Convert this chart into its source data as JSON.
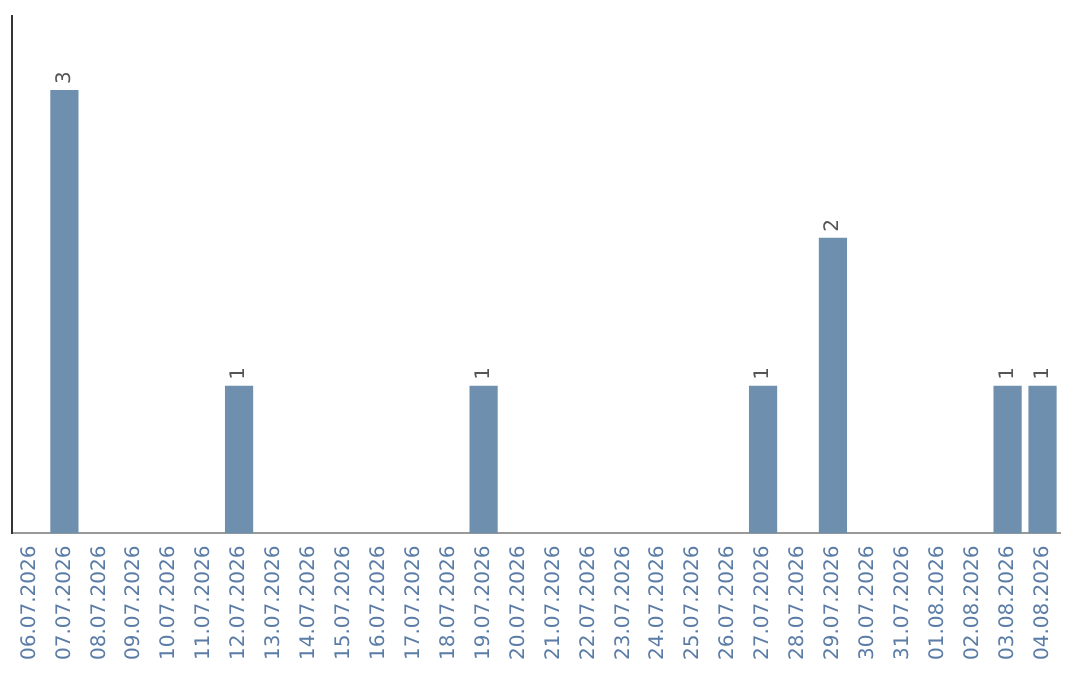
{
  "chart_data": {
    "type": "bar",
    "categories": [
      "06.07.2026",
      "07.07.2026",
      "08.07.2026",
      "09.07.2026",
      "10.07.2026",
      "11.07.2026",
      "12.07.2026",
      "13.07.2026",
      "14.07.2026",
      "15.07.2026",
      "16.07.2026",
      "17.07.2026",
      "18.07.2026",
      "19.07.2026",
      "20.07.2026",
      "21.07.2026",
      "22.07.2026",
      "23.07.2026",
      "24.07.2026",
      "25.07.2026",
      "26.07.2026",
      "27.07.2026",
      "28.07.2026",
      "29.07.2026",
      "30.07.2026",
      "31.07.2026",
      "01.08.2026",
      "02.08.2026",
      "03.08.2026",
      "04.08.2026"
    ],
    "values": [
      0,
      3,
      0,
      0,
      0,
      0,
      1,
      0,
      0,
      0,
      0,
      0,
      0,
      1,
      0,
      0,
      0,
      0,
      0,
      0,
      0,
      1,
      0,
      2,
      0,
      0,
      0,
      0,
      1,
      1
    ],
    "value_labels": [
      null,
      "3",
      null,
      null,
      null,
      null,
      "1",
      null,
      null,
      null,
      null,
      null,
      null,
      "1",
      null,
      null,
      null,
      null,
      null,
      null,
      null,
      "1",
      null,
      "2",
      null,
      null,
      null,
      null,
      "1",
      "1"
    ],
    "color": "#6f8fae",
    "grid": false,
    "legend": false,
    "tick_labels": "x"
  }
}
